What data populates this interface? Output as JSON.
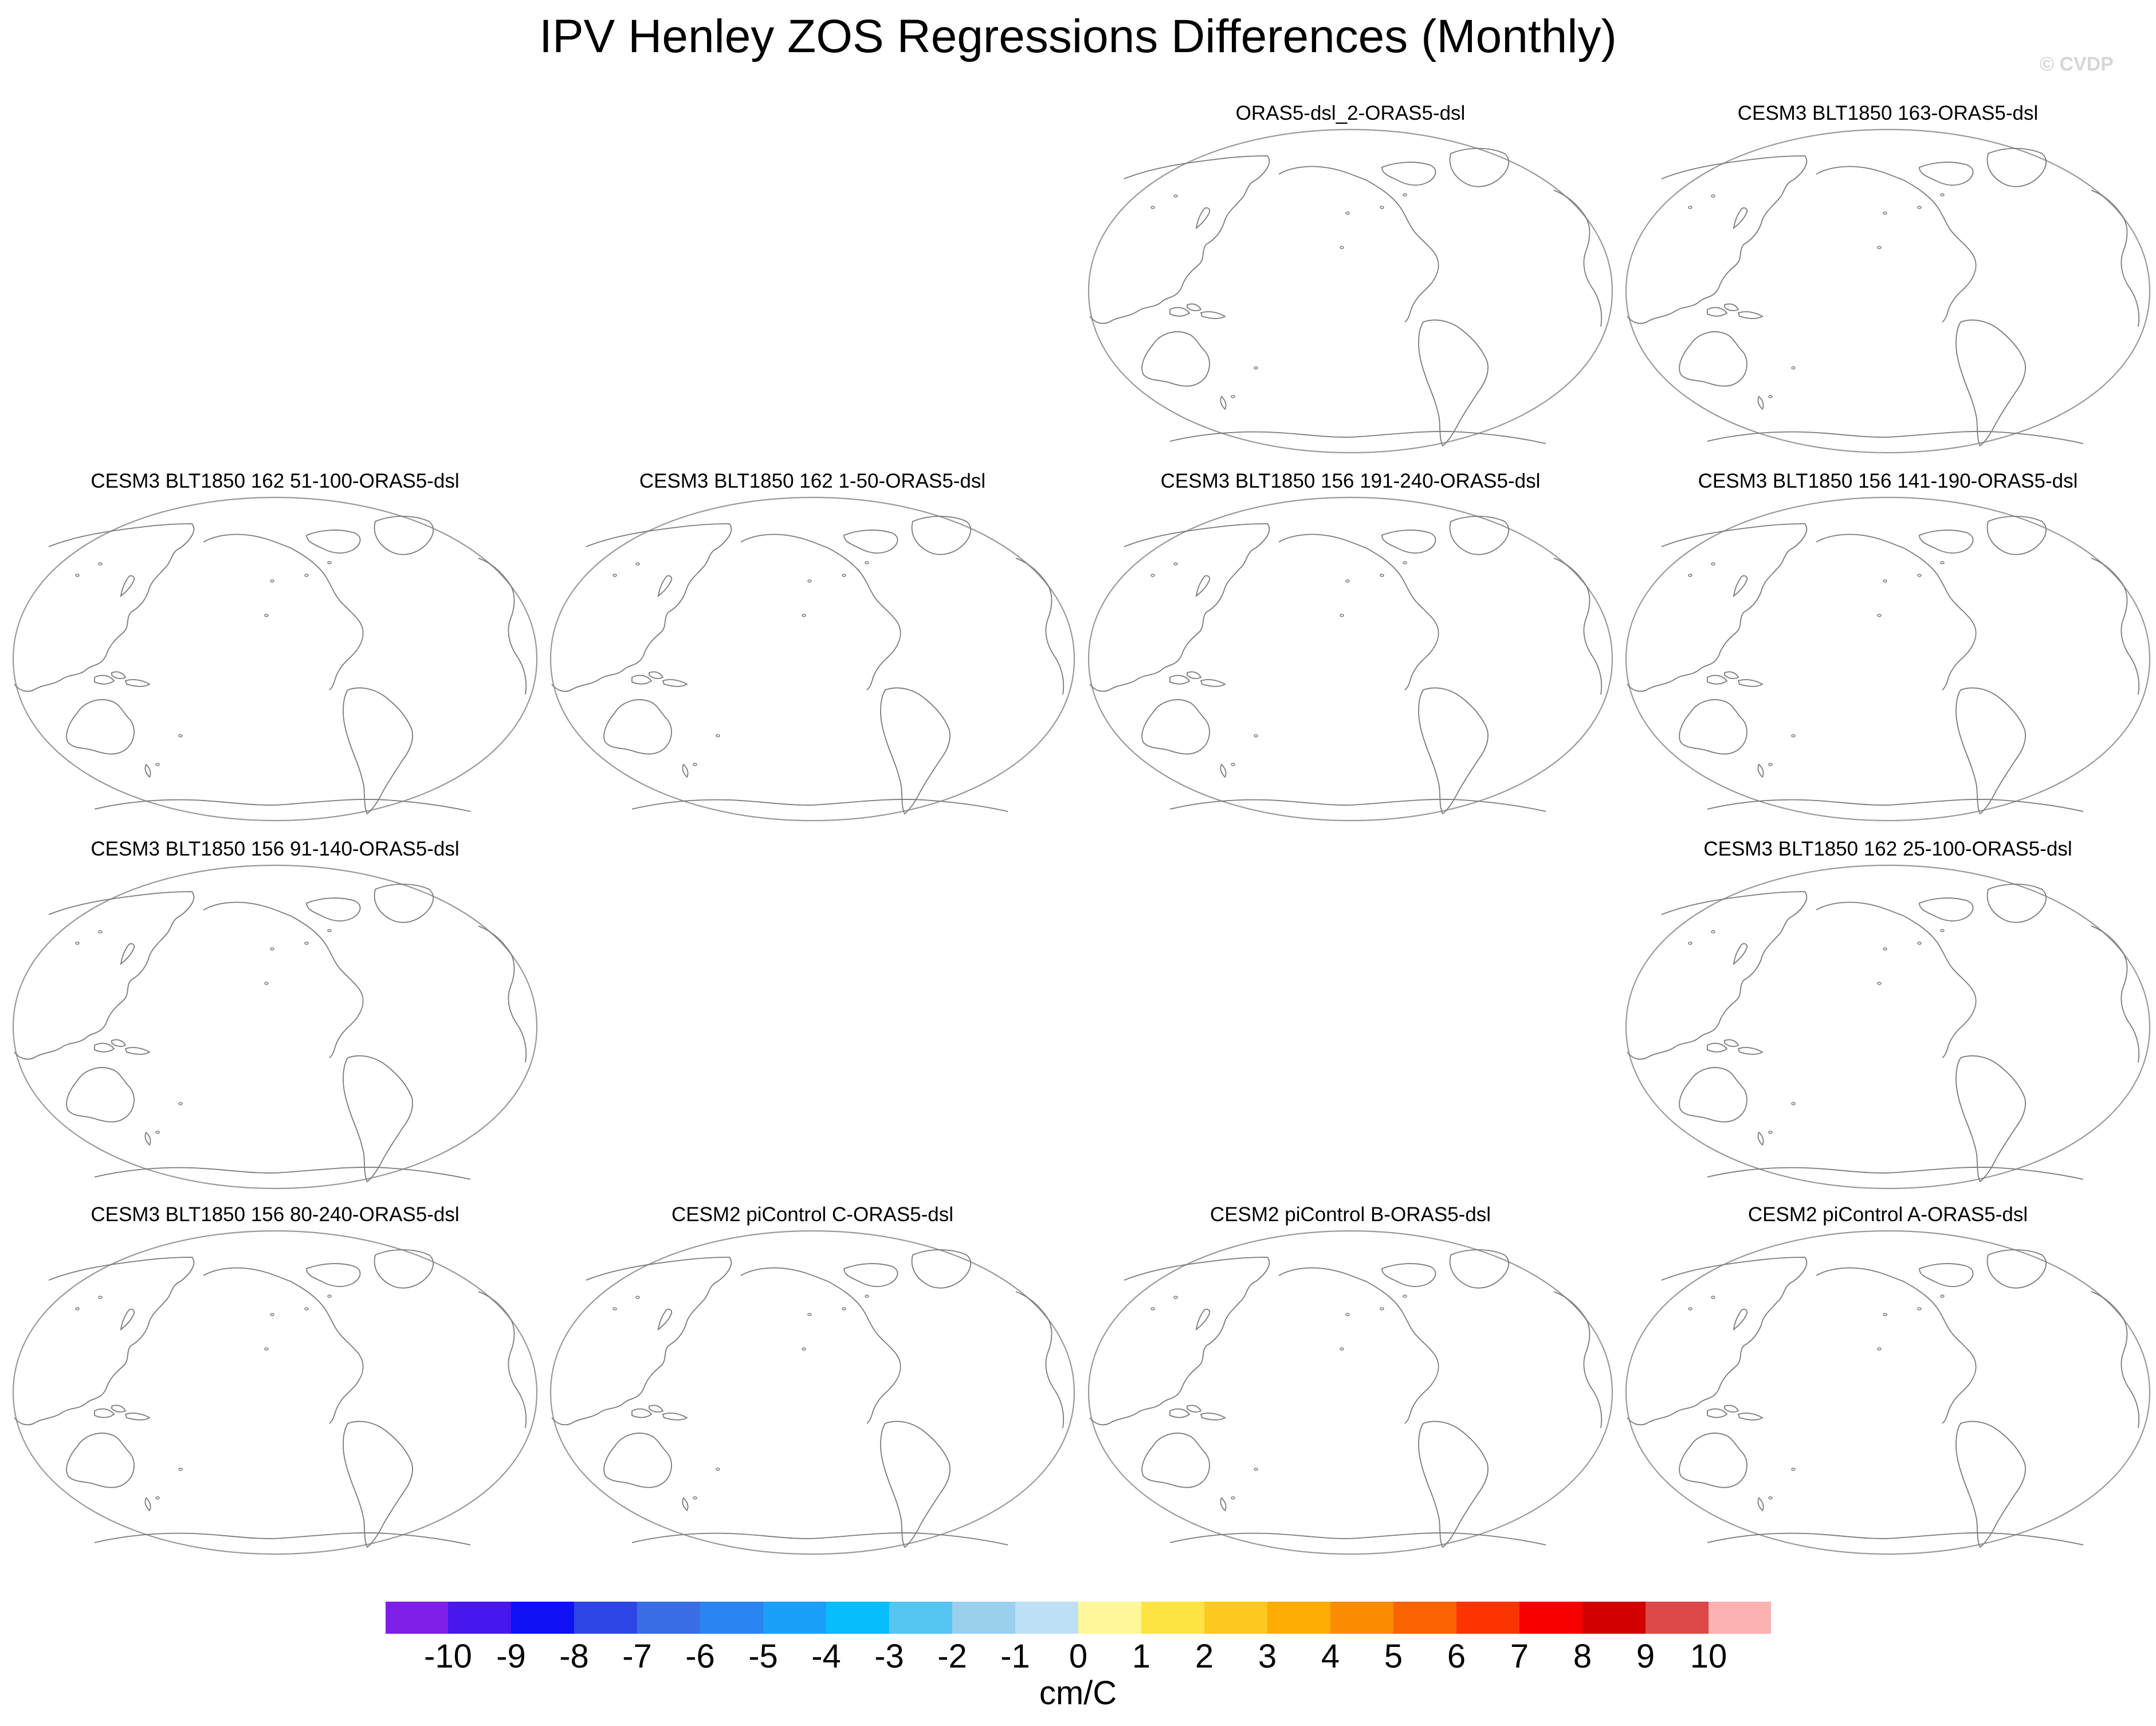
{
  "title": "IPV Henley ZOS Regressions Differences (Monthly)",
  "watermark": "© CVDP",
  "panels": [
    {
      "label": "ORAS5-dsl_2-ORAS5-dsl"
    },
    {
      "label": "CESM3 BLT1850 163-ORAS5-dsl"
    },
    {
      "label": "CESM3 BLT1850 162 51-100-ORAS5-dsl"
    },
    {
      "label": "CESM3 BLT1850 162 1-50-ORAS5-dsl"
    },
    {
      "label": "CESM3 BLT1850 156 191-240-ORAS5-dsl"
    },
    {
      "label": "CESM3 BLT1850 156 141-190-ORAS5-dsl"
    },
    {
      "label": "CESM3 BLT1850 156 91-140-ORAS5-dsl"
    },
    {
      "label": "CESM3 BLT1850 162 25-100-ORAS5-dsl"
    },
    {
      "label": "CESM3 BLT1850 156 80-240-ORAS5-dsl"
    },
    {
      "label": "CESM2 piControl C-ORAS5-dsl"
    },
    {
      "label": "CESM2 piControl B-ORAS5-dsl"
    },
    {
      "label": "CESM2 piControl A-ORAS5-dsl"
    }
  ],
  "colorbar": {
    "units": "cm/C",
    "ticks": [
      "-10",
      "-9",
      "-8",
      "-7",
      "-6",
      "-5",
      "-4",
      "-3",
      "-2",
      "-1",
      "0",
      "1",
      "2",
      "3",
      "4",
      "5",
      "6",
      "7",
      "8",
      "9",
      "10"
    ],
    "colors": [
      "#7e1fe8",
      "#4717ef",
      "#1010f4",
      "#2f46e6",
      "#3a6ee6",
      "#2a85f2",
      "#1aa0fa",
      "#08bdfb",
      "#55c6f1",
      "#9ad0ee",
      "#bde0f4",
      "#fff799",
      "#fde443",
      "#fdc81f",
      "#fcac02",
      "#fb8c02",
      "#fb6303",
      "#fb3402",
      "#f80000",
      "#d30000",
      "#dd4848",
      "#fdb2b2"
    ]
  }
}
